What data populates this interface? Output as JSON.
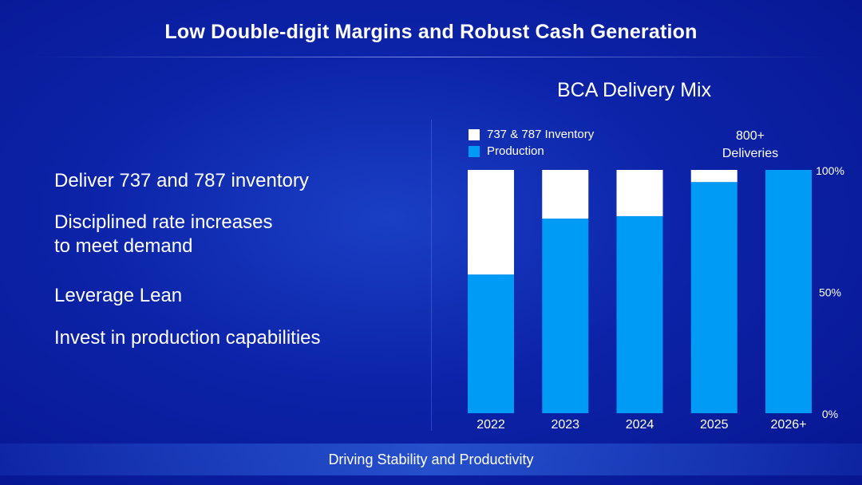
{
  "title": "Low Double-digit Margins and Robust Cash Generation",
  "bullets": [
    "Deliver 737 and 787 inventory",
    "Disciplined rate increases\nto meet demand",
    "Leverage Lean",
    "Invest in production capabilities"
  ],
  "footer": "Driving Stability and Productivity",
  "chart_data": {
    "type": "bar",
    "stacked": true,
    "title": "BCA Delivery Mix",
    "categories": [
      "2022",
      "2023",
      "2024",
      "2025",
      "2026+"
    ],
    "series": [
      {
        "name": "Production",
        "color": "#009bf5",
        "values": [
          57,
          80,
          81,
          95,
          100
        ]
      },
      {
        "name": "737 & 787 Inventory",
        "color": "#ffffff",
        "values": [
          43,
          20,
          19,
          5,
          0
        ]
      }
    ],
    "ylim": [
      0,
      100
    ],
    "yticks": [
      "0%",
      "50%",
      "100%"
    ],
    "annotation": "800+\nDeliveries",
    "legend": "top-left",
    "grid": false
  }
}
